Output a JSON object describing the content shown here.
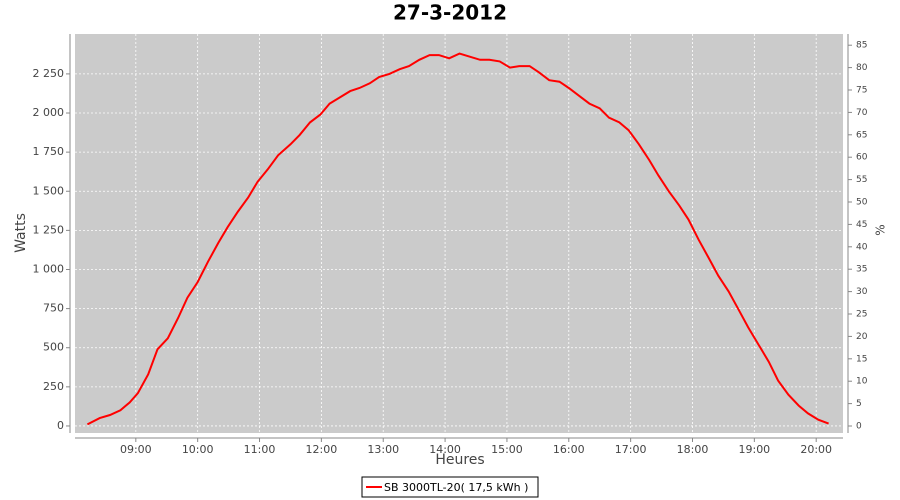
{
  "chart_data": {
    "type": "line",
    "title": "27-3-2012",
    "x_label": "Heures",
    "y_label": "Watts",
    "y2_label": "%",
    "x": [
      "08:13",
      "08:25",
      "08:35",
      "08:45",
      "08:54",
      "09:02",
      "09:12",
      "09:21",
      "09:31",
      "09:41",
      "09:50",
      "10:00",
      "10:10",
      "10:20",
      "10:29",
      "10:39",
      "10:49",
      "10:58",
      "11:08",
      "11:18",
      "11:30",
      "11:39",
      "11:49",
      "11:59",
      "12:08",
      "12:18",
      "12:28",
      "12:37",
      "12:47",
      "12:56",
      "13:06",
      "13:16",
      "13:25",
      "13:35",
      "13:45",
      "13:54",
      "14:04",
      "14:14",
      "14:24",
      "14:34",
      "14:43",
      "14:53",
      "15:03",
      "15:12",
      "15:22",
      "15:31",
      "15:41",
      "15:51",
      "16:00",
      "16:10",
      "16:20",
      "16:30",
      "16:39",
      "16:49",
      "16:58",
      "17:08",
      "17:18",
      "17:27",
      "17:37",
      "17:47",
      "17:56",
      "18:06",
      "18:16",
      "18:25",
      "18:35",
      "18:45",
      "18:54",
      "19:04",
      "19:14",
      "19:23",
      "19:33",
      "19:43",
      "19:52",
      "20:02",
      "20:12"
    ],
    "series": [
      {
        "name": "SB 3000TL-20( 17,5 kWh )",
        "color": "#ff0000",
        "values": [
          10,
          50,
          70,
          100,
          150,
          210,
          330,
          490,
          560,
          690,
          820,
          920,
          1050,
          1170,
          1270,
          1370,
          1460,
          1560,
          1640,
          1730,
          1800,
          1860,
          1940,
          1990,
          2060,
          2100,
          2140,
          2160,
          2190,
          2230,
          2250,
          2280,
          2300,
          2340,
          2370,
          2370,
          2350,
          2380,
          2360,
          2340,
          2340,
          2330,
          2290,
          2300,
          2300,
          2260,
          2210,
          2200,
          2160,
          2110,
          2060,
          2030,
          1970,
          1940,
          1890,
          1800,
          1700,
          1600,
          1500,
          1410,
          1320,
          1190,
          1070,
          960,
          860,
          740,
          630,
          520,
          410,
          290,
          200,
          130,
          80,
          40,
          15
        ]
      }
    ],
    "xlim": [
      "08:01",
      "20:26"
    ],
    "xticks": [
      "09:00",
      "10:00",
      "11:00",
      "12:00",
      "13:00",
      "14:00",
      "15:00",
      "16:00",
      "17:00",
      "18:00",
      "19:00",
      "20:00"
    ],
    "ylim": [
      -45,
      2505
    ],
    "yticks": [
      0,
      250,
      500,
      750,
      {
        "value": 1000,
        "label": "1 000"
      },
      {
        "value": 1250,
        "label": "1 250"
      },
      {
        "value": 1500,
        "label": "1 500"
      },
      {
        "value": 1750,
        "label": "1 750"
      },
      {
        "value": 2000,
        "label": "2 000"
      },
      {
        "value": 2250,
        "label": "2 250"
      }
    ],
    "y2lim": [
      -1.56,
      87.5
    ],
    "y2ticks": [
      0,
      5,
      10,
      15,
      20,
      25,
      30,
      35,
      40,
      45,
      50,
      55,
      60,
      65,
      70,
      75,
      80,
      85
    ],
    "grid": true
  }
}
